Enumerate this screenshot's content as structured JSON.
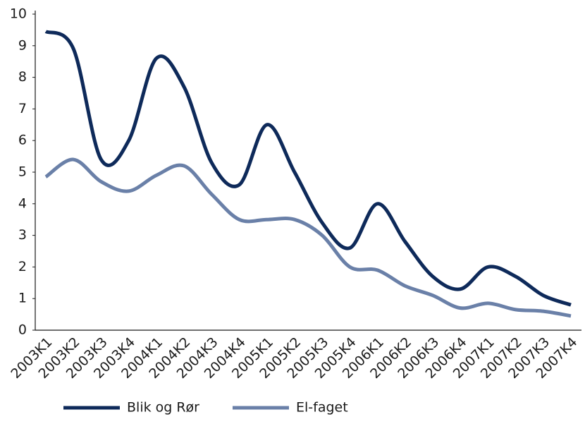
{
  "chart_data": {
    "type": "line",
    "categories": [
      "2003K1",
      "2003K2",
      "2003K3",
      "2003K4",
      "2004K1",
      "2004K2",
      "2004K3",
      "2004K4",
      "2005K1",
      "2005K2",
      "2005K3",
      "2005K4",
      "2006K1",
      "2006K2",
      "2006K3",
      "2006K4",
      "2007K1",
      "2007K2",
      "2007K3",
      "2007K4"
    ],
    "series": [
      {
        "name": "Blik og Rør",
        "color": "#0e2a5a",
        "values": [
          9.45,
          8.9,
          5.4,
          6.0,
          8.6,
          7.7,
          5.3,
          4.6,
          6.5,
          5.0,
          3.4,
          2.6,
          4.0,
          2.8,
          1.7,
          1.3,
          2.0,
          1.7,
          1.1,
          0.8
        ]
      },
      {
        "name": "El-faget",
        "color": "#6a80a8",
        "values": [
          4.85,
          5.4,
          4.7,
          4.4,
          4.9,
          5.2,
          4.3,
          3.5,
          3.5,
          3.5,
          3.0,
          2.0,
          1.9,
          1.4,
          1.1,
          0.7,
          0.85,
          0.65,
          0.6,
          0.45
        ]
      }
    ],
    "ylim": [
      0,
      10
    ],
    "yticks": [
      0,
      1,
      2,
      3,
      4,
      5,
      6,
      7,
      8,
      9,
      10
    ],
    "grid": false
  }
}
